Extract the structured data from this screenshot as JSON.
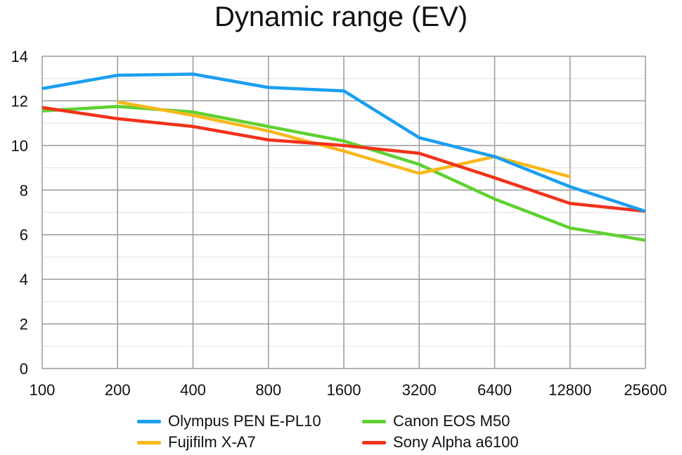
{
  "chart_data": {
    "type": "line",
    "title": "Dynamic range (EV)",
    "xlabel": "",
    "ylabel": "",
    "x_scale": "log2",
    "categories": [
      "100",
      "200",
      "400",
      "800",
      "1600",
      "3200",
      "6400",
      "12800",
      "25600"
    ],
    "ylim": [
      0,
      14
    ],
    "yticks": [
      0,
      2,
      4,
      6,
      8,
      10,
      12,
      14
    ],
    "grid": true,
    "legend_position": "bottom",
    "series": [
      {
        "name": "Olympus PEN E-PL10",
        "color": "#1a9ff0",
        "values": [
          12.55,
          13.15,
          13.2,
          12.6,
          12.45,
          10.35,
          9.5,
          8.15,
          7.05
        ]
      },
      {
        "name": "Canon EOS M50",
        "color": "#5fd131",
        "values": [
          11.55,
          11.75,
          11.5,
          10.85,
          10.2,
          9.15,
          7.6,
          6.3,
          5.75
        ]
      },
      {
        "name": "Fujifilm X-A7",
        "color": "#f7b81a",
        "values": [
          null,
          11.95,
          11.35,
          10.65,
          9.75,
          8.75,
          9.5,
          8.6,
          null
        ]
      },
      {
        "name": "Sony Alpha a6100",
        "color": "#f2321a",
        "values": [
          11.7,
          11.2,
          10.85,
          10.25,
          10.0,
          9.65,
          8.55,
          7.4,
          7.05
        ]
      }
    ]
  }
}
